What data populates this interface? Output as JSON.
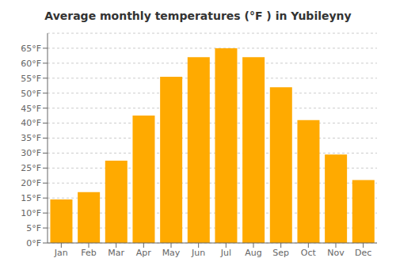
{
  "chart_data": {
    "type": "bar",
    "title": "Average monthly temperatures (°F ) in Yubileyny",
    "categories": [
      "Jan",
      "Feb",
      "Mar",
      "Apr",
      "May",
      "Jun",
      "Jul",
      "Aug",
      "Sep",
      "Oct",
      "Nov",
      "Dec"
    ],
    "values": [
      14.5,
      17,
      27.5,
      42.5,
      55.5,
      62,
      65,
      62,
      52,
      41,
      29.5,
      21
    ],
    "color": "#FFAA00",
    "ylim": [
      0,
      70
    ],
    "yticks": [
      {
        "value": 0,
        "label": "0°F"
      },
      {
        "value": 5,
        "label": "5°F"
      },
      {
        "value": 10,
        "label": "10°F"
      },
      {
        "value": 15,
        "label": "15°F"
      },
      {
        "value": 20,
        "label": "20°F"
      },
      {
        "value": 25,
        "label": "25°F"
      },
      {
        "value": 30,
        "label": "30°F"
      },
      {
        "value": 35,
        "label": "35°F"
      },
      {
        "value": 40,
        "label": "40°F"
      },
      {
        "value": 45,
        "label": "45°F"
      },
      {
        "value": 50,
        "label": "50°F"
      },
      {
        "value": 55,
        "label": "55°F"
      },
      {
        "value": 60,
        "label": "60°F"
      },
      {
        "value": 65,
        "label": "65°F"
      }
    ],
    "grid": true
  }
}
